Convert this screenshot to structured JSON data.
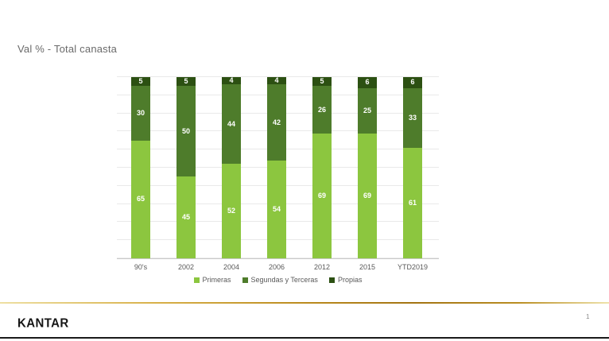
{
  "slide": {
    "title": "Val % - Total canasta",
    "logo_text": "KANTAR",
    "page_number": "1"
  },
  "chart_data": {
    "type": "bar",
    "subtype": "stacked-100",
    "title": "Val % - Total canasta",
    "categories": [
      "90's",
      "2002",
      "2004",
      "2006",
      "2012",
      "2015",
      "YTD2019"
    ],
    "series": [
      {
        "name": "Primeras",
        "color": "#8cc63f",
        "values": [
          65,
          45,
          52,
          54,
          69,
          69,
          61
        ]
      },
      {
        "name": "Segundas y Terceras",
        "color": "#4e7c2b",
        "values": [
          30,
          50,
          44,
          42,
          26,
          25,
          33
        ]
      },
      {
        "name": "Propias",
        "color": "#2c5012",
        "values": [
          5,
          5,
          4,
          4,
          5,
          6,
          6
        ]
      }
    ],
    "xlabel": "",
    "ylabel": "",
    "ylim": [
      0,
      100
    ],
    "gridlines": {
      "horizontal": true,
      "interval": 10
    },
    "legend_position": "bottom",
    "value_labels": "white, centered in each segment"
  },
  "colors": {
    "background": "#ffffff",
    "title_text": "#6a6a6a",
    "axis_text": "#595959",
    "gridline": "#e9e9e9",
    "axis_line": "#c9c9c9",
    "gold_rule": "#bb8b1e",
    "bottom_rule": "#1a1a1a",
    "logo_text": "#151515"
  }
}
